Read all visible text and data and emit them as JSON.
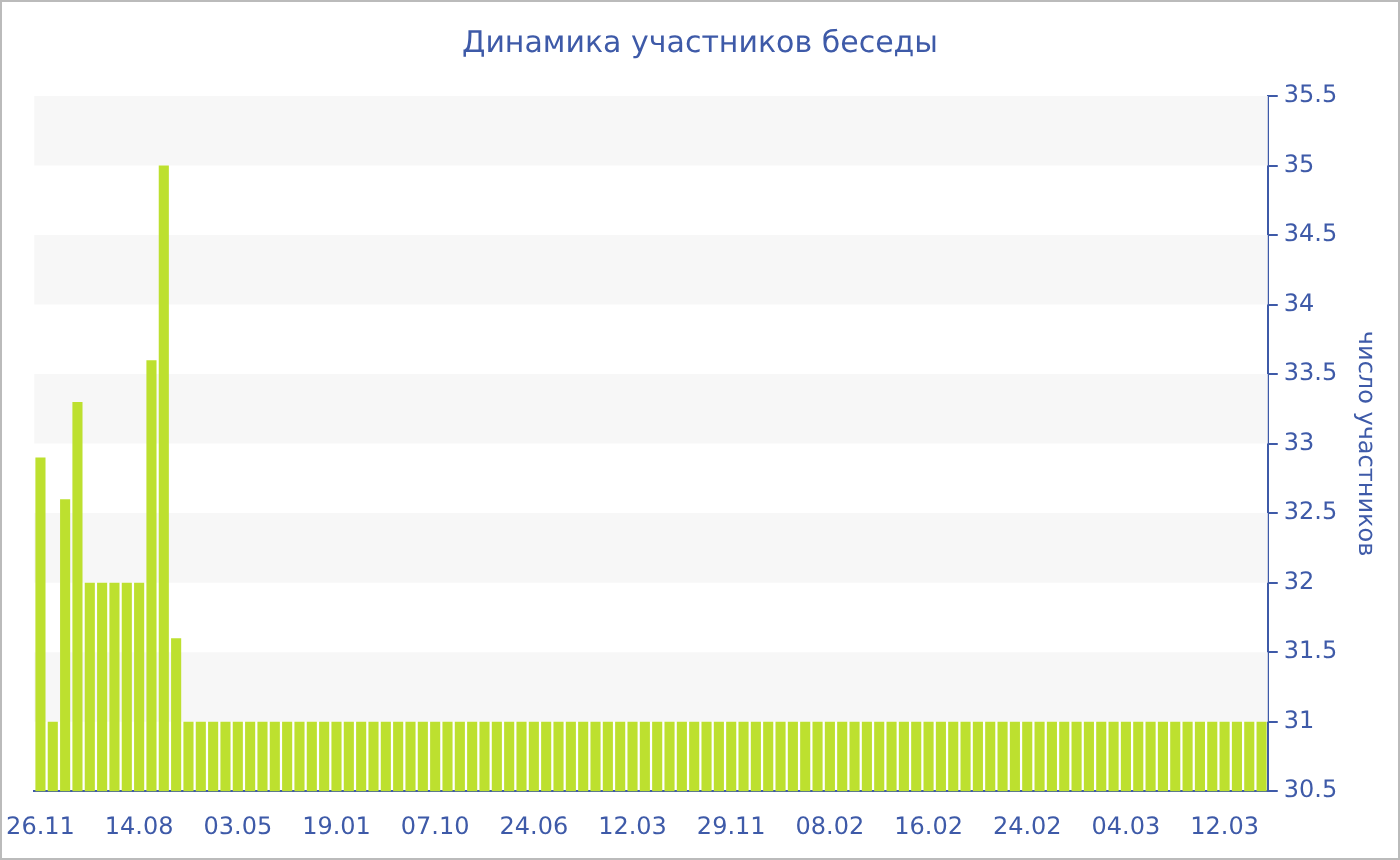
{
  "chart_data": {
    "type": "bar",
    "title": "Динамика участников беседы",
    "ylabel": "число участников",
    "categories": [
      "26.11",
      null,
      null,
      null,
      null,
      null,
      null,
      null,
      "14.08",
      null,
      null,
      null,
      null,
      null,
      null,
      null,
      "03.05",
      null,
      null,
      null,
      null,
      null,
      null,
      null,
      "19.01",
      null,
      null,
      null,
      null,
      null,
      null,
      null,
      "07.10",
      null,
      null,
      null,
      null,
      null,
      null,
      null,
      "24.06",
      null,
      null,
      null,
      null,
      null,
      null,
      null,
      "12.03",
      null,
      null,
      null,
      null,
      null,
      null,
      null,
      "29.11",
      null,
      null,
      null,
      null,
      null,
      null,
      null,
      "08.02",
      null,
      null,
      null,
      null,
      null,
      null,
      null,
      "16.02",
      null,
      null,
      null,
      null,
      null,
      null,
      null,
      "24.02",
      null,
      null,
      null,
      null,
      null,
      null,
      null,
      "04.03",
      null,
      null,
      null,
      null,
      null,
      null,
      null,
      "12.03",
      null,
      null,
      null
    ],
    "values": [
      32.9,
      31,
      32.6,
      33.3,
      32,
      32,
      32,
      32,
      32,
      33.6,
      35,
      31.6,
      31,
      31,
      31,
      31,
      31,
      31,
      31,
      31,
      31,
      31,
      31,
      31,
      31,
      31,
      31,
      31,
      31,
      31,
      31,
      31,
      31,
      31,
      31,
      31,
      31,
      31,
      31,
      31,
      31,
      31,
      31,
      31,
      31,
      31,
      31,
      31,
      31,
      31,
      31,
      31,
      31,
      31,
      31,
      31,
      31,
      31,
      31,
      31,
      31,
      31,
      31,
      31,
      31,
      31,
      31,
      31,
      31,
      31,
      31,
      31,
      31,
      31,
      31,
      31,
      31,
      31,
      31,
      31,
      31,
      31,
      31,
      31,
      31,
      31,
      31,
      31,
      31,
      31,
      31,
      31,
      31,
      31,
      31,
      31,
      31,
      31,
      31,
      31
    ],
    "color": "#bde02f",
    "ylim": [
      30.5,
      35.5
    ],
    "yticks": [
      30.5,
      31,
      31.5,
      32,
      32.5,
      33,
      33.5,
      34,
      34.5,
      35,
      35.5
    ],
    "bands": [
      {
        "axis": "y",
        "from": 35,
        "to": 35.5,
        "color": "#f7f7f7"
      },
      {
        "axis": "y",
        "from": 34,
        "to": 34.5,
        "color": "#f7f7f7"
      },
      {
        "axis": "y",
        "from": 33,
        "to": 33.5,
        "color": "#f7f7f7"
      },
      {
        "axis": "y",
        "from": 32,
        "to": 32.5,
        "color": "#f7f7f7"
      },
      {
        "axis": "y",
        "from": 31,
        "to": 31.5,
        "color": "#f7f7f7"
      }
    ],
    "legend": false
  }
}
